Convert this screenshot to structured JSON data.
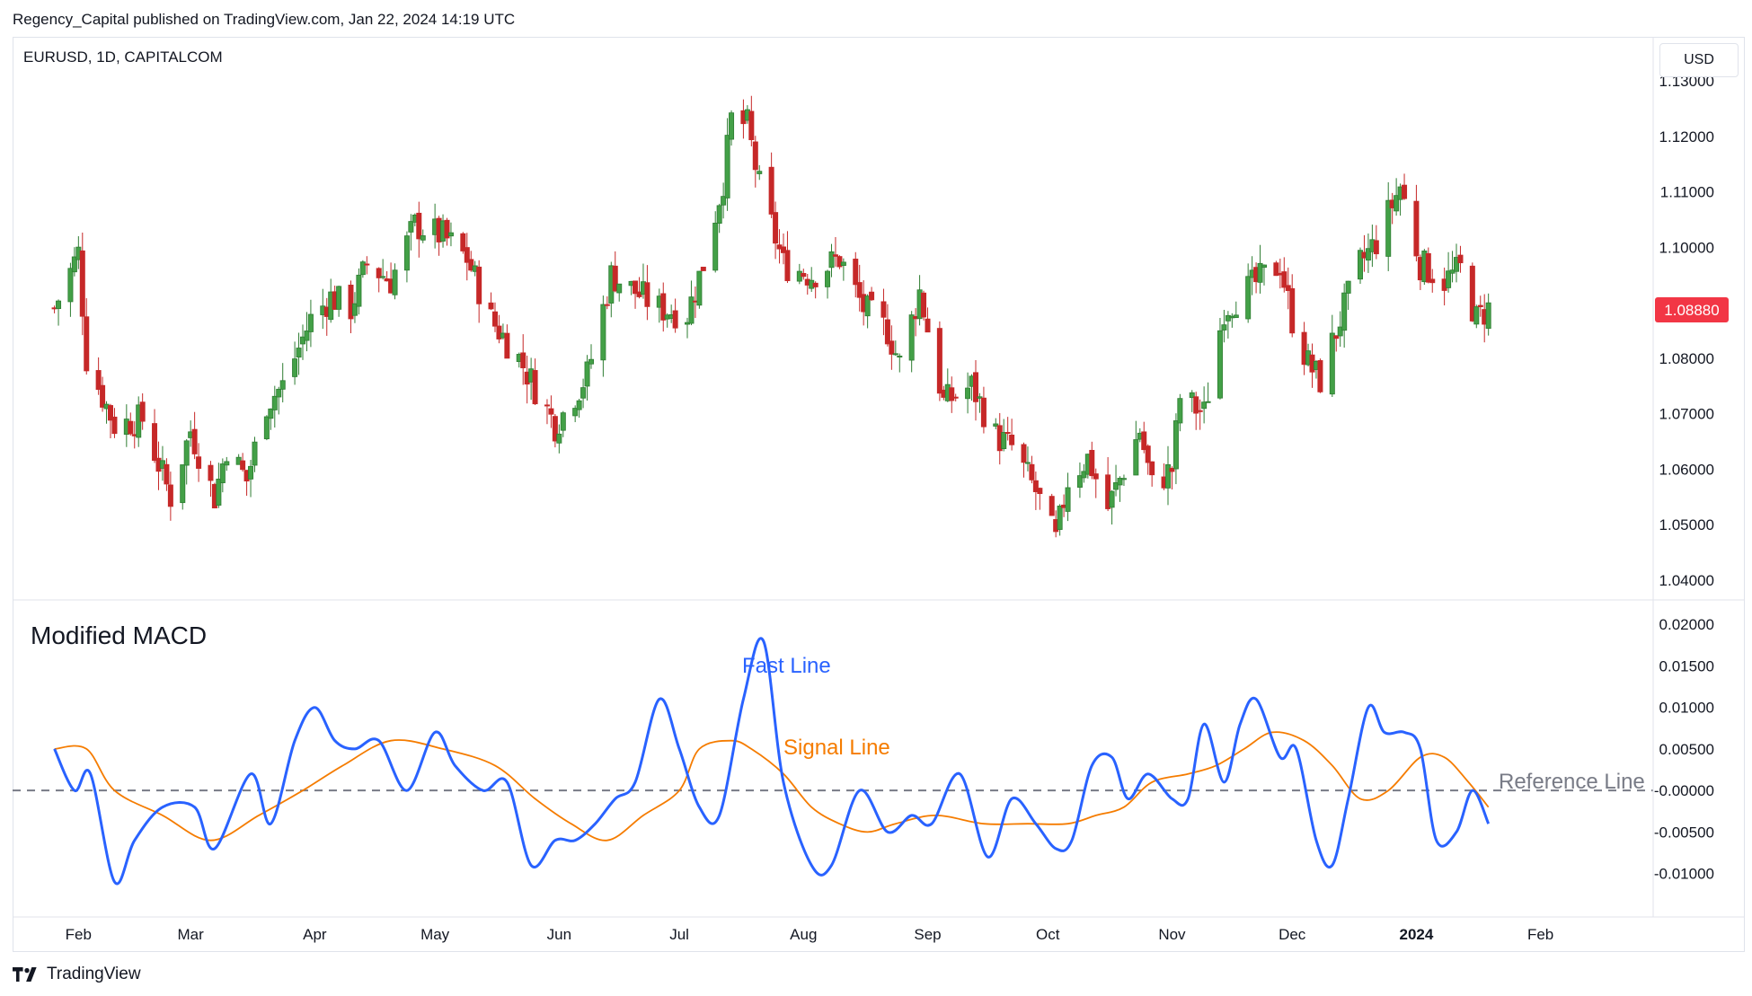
{
  "header": "Regency_Capital published on TradingView.com, Jan 22, 2024 14:19 UTC",
  "symbol": "EURUSD, 1D, CAPITALCOM",
  "currency": "USD",
  "footer_brand": "TradingView",
  "colors": {
    "up": "#26a69a",
    "up_body": "#2e7d32",
    "down": "#c62828",
    "fast": "#2962ff",
    "signal": "#f57c00",
    "ref": "#787b86",
    "price_badge": "#f23645"
  },
  "chart_data": [
    {
      "type": "candlestick",
      "title": "EURUSD, 1D, CAPITALCOM",
      "ylim": [
        1.04,
        1.13
      ],
      "y_ticks": [
        "1.04000",
        "1.05000",
        "1.06000",
        "1.07000",
        "1.08000",
        "1.09000",
        "1.10000",
        "1.11000",
        "1.12000",
        "1.13000"
      ],
      "x_ticks": [
        "Feb",
        "Mar",
        "Apr",
        "May",
        "Jun",
        "Jul",
        "Aug",
        "Sep",
        "Oct",
        "Nov",
        "Dec",
        "2024",
        "Feb"
      ],
      "last_price": "1.08880",
      "grid": false,
      "close_path": [
        [
          "2023-01-26",
          1.089
        ],
        [
          "2023-02-01",
          1.099
        ],
        [
          "2023-02-03",
          1.08
        ],
        [
          "2023-02-10",
          1.068
        ],
        [
          "2023-02-17",
          1.069
        ],
        [
          "2023-02-24",
          1.055
        ],
        [
          "2023-03-01",
          1.067
        ],
        [
          "2023-03-07",
          1.055
        ],
        [
          "2023-03-10",
          1.064
        ],
        [
          "2023-03-15",
          1.058
        ],
        [
          "2023-03-20",
          1.072
        ],
        [
          "2023-03-24",
          1.075
        ],
        [
          "2023-03-31",
          1.087
        ],
        [
          "2023-04-05",
          1.091
        ],
        [
          "2023-04-10",
          1.089
        ],
        [
          "2023-04-14",
          1.097
        ],
        [
          "2023-04-20",
          1.094
        ],
        [
          "2023-04-26",
          1.104
        ],
        [
          "2023-05-03",
          1.102
        ],
        [
          "2023-05-09",
          1.098
        ],
        [
          "2023-05-15",
          1.087
        ],
        [
          "2023-05-22",
          1.08
        ],
        [
          "2023-05-31",
          1.068
        ],
        [
          "2023-06-02",
          1.07
        ],
        [
          "2023-06-08",
          1.077
        ],
        [
          "2023-06-14",
          1.095
        ],
        [
          "2023-06-20",
          1.092
        ],
        [
          "2023-06-26",
          1.089
        ],
        [
          "2023-07-03",
          1.088
        ],
        [
          "2023-07-07",
          1.097
        ],
        [
          "2023-07-12",
          1.112
        ],
        [
          "2023-07-14",
          1.123
        ],
        [
          "2023-07-18",
          1.122
        ],
        [
          "2023-07-21",
          1.111
        ],
        [
          "2023-07-27",
          1.097
        ],
        [
          "2023-08-03",
          1.095
        ],
        [
          "2023-08-10",
          1.098
        ],
        [
          "2023-08-16",
          1.089
        ],
        [
          "2023-08-22",
          1.085
        ],
        [
          "2023-08-25",
          1.079
        ],
        [
          "2023-08-30",
          1.092
        ],
        [
          "2023-09-05",
          1.072
        ],
        [
          "2023-09-12",
          1.075
        ],
        [
          "2023-09-18",
          1.066
        ],
        [
          "2023-09-22",
          1.064
        ],
        [
          "2023-09-28",
          1.056
        ],
        [
          "2023-10-03",
          1.047
        ],
        [
          "2023-10-06",
          1.058
        ],
        [
          "2023-10-11",
          1.062
        ],
        [
          "2023-10-16",
          1.053
        ],
        [
          "2023-10-20",
          1.06
        ],
        [
          "2023-10-24",
          1.067
        ],
        [
          "2023-10-27",
          1.057
        ],
        [
          "2023-11-01",
          1.06
        ],
        [
          "2023-11-03",
          1.073
        ],
        [
          "2023-11-09",
          1.07
        ],
        [
          "2023-11-14",
          1.089
        ],
        [
          "2023-11-21",
          1.093
        ],
        [
          "2023-11-28",
          1.097
        ],
        [
          "2023-12-01",
          1.087
        ],
        [
          "2023-12-05",
          1.079
        ],
        [
          "2023-12-08",
          1.076
        ],
        [
          "2023-12-13",
          1.087
        ],
        [
          "2023-12-18",
          1.097
        ],
        [
          "2023-12-22",
          1.101
        ],
        [
          "2023-12-28",
          1.111
        ],
        [
          "2024-01-02",
          1.097
        ],
        [
          "2024-01-08",
          1.094
        ],
        [
          "2024-01-12",
          1.096
        ],
        [
          "2024-01-16",
          1.087
        ],
        [
          "2024-01-19",
          1.089
        ]
      ]
    },
    {
      "type": "line",
      "title": "Modified MACD",
      "ylim": [
        -0.0135,
        0.021
      ],
      "y_ticks": [
        "-0.01000",
        "-0.00500",
        "-0.00000",
        "0.00500",
        "0.01000",
        "0.01500",
        "0.02000"
      ],
      "grid": false,
      "reference_value": 0,
      "series": [
        {
          "name": "Fast Line",
          "points": [
            [
              "2023-01-26",
              0.005
            ],
            [
              "2023-01-31",
              0.0
            ],
            [
              "2023-02-04",
              0.002
            ],
            [
              "2023-02-10",
              -0.011
            ],
            [
              "2023-02-15",
              -0.006
            ],
            [
              "2023-02-22",
              -0.002
            ],
            [
              "2023-03-02",
              -0.002
            ],
            [
              "2023-03-07",
              -0.007
            ],
            [
              "2023-03-16",
              0.002
            ],
            [
              "2023-03-21",
              -0.004
            ],
            [
              "2023-03-27",
              0.006
            ],
            [
              "2023-04-01",
              0.01
            ],
            [
              "2023-04-06",
              0.006
            ],
            [
              "2023-04-11",
              0.005
            ],
            [
              "2023-04-17",
              0.006
            ],
            [
              "2023-04-24",
              0.0
            ],
            [
              "2023-05-01",
              0.007
            ],
            [
              "2023-05-06",
              0.003
            ],
            [
              "2023-05-13",
              0.0
            ],
            [
              "2023-05-19",
              0.001
            ],
            [
              "2023-05-25",
              -0.009
            ],
            [
              "2023-05-31",
              -0.006
            ],
            [
              "2023-06-05",
              -0.006
            ],
            [
              "2023-06-10",
              -0.004
            ],
            [
              "2023-06-15",
              -0.001
            ],
            [
              "2023-06-20",
              0.001
            ],
            [
              "2023-06-26",
              0.011
            ],
            [
              "2023-07-01",
              0.005
            ],
            [
              "2023-07-06",
              -0.002
            ],
            [
              "2023-07-11",
              -0.003
            ],
            [
              "2023-07-17",
              0.011
            ],
            [
              "2023-07-22",
              0.018
            ],
            [
              "2023-07-27",
              0.001
            ],
            [
              "2023-08-03",
              -0.009
            ],
            [
              "2023-08-08",
              -0.009
            ],
            [
              "2023-08-15",
              0.0
            ],
            [
              "2023-08-22",
              -0.005
            ],
            [
              "2023-08-28",
              -0.003
            ],
            [
              "2023-09-02",
              -0.004
            ],
            [
              "2023-09-09",
              0.002
            ],
            [
              "2023-09-16",
              -0.008
            ],
            [
              "2023-09-22",
              -0.001
            ],
            [
              "2023-09-28",
              -0.004
            ],
            [
              "2023-10-03",
              -0.007
            ],
            [
              "2023-10-07",
              -0.006
            ],
            [
              "2023-10-12",
              0.003
            ],
            [
              "2023-10-17",
              0.004
            ],
            [
              "2023-10-21",
              -0.001
            ],
            [
              "2023-10-26",
              0.002
            ],
            [
              "2023-11-01",
              -0.001
            ],
            [
              "2023-11-05",
              -0.001
            ],
            [
              "2023-11-09",
              0.008
            ],
            [
              "2023-11-14",
              0.001
            ],
            [
              "2023-11-18",
              0.008
            ],
            [
              "2023-11-22",
              0.011
            ],
            [
              "2023-11-28",
              0.004
            ],
            [
              "2023-12-02",
              0.005
            ],
            [
              "2023-12-07",
              -0.006
            ],
            [
              "2023-12-11",
              -0.009
            ],
            [
              "2023-12-15",
              -0.001
            ],
            [
              "2023-12-20",
              0.01
            ],
            [
              "2023-12-24",
              0.007
            ],
            [
              "2023-12-29",
              0.007
            ],
            [
              "2024-01-02",
              0.005
            ],
            [
              "2024-01-06",
              -0.006
            ],
            [
              "2024-01-11",
              -0.005
            ],
            [
              "2024-01-15",
              0.0
            ],
            [
              "2024-01-19",
              -0.004
            ]
          ]
        },
        {
          "name": "Signal Line",
          "points": [
            [
              "2023-01-26",
              0.005
            ],
            [
              "2023-02-03",
              0.005
            ],
            [
              "2023-02-10",
              0.0
            ],
            [
              "2023-02-22",
              -0.003
            ],
            [
              "2023-03-06",
              -0.006
            ],
            [
              "2023-03-18",
              -0.003
            ],
            [
              "2023-03-29",
              0.0
            ],
            [
              "2023-04-08",
              0.003
            ],
            [
              "2023-04-20",
              0.006
            ],
            [
              "2023-05-03",
              0.005
            ],
            [
              "2023-05-16",
              0.003
            ],
            [
              "2023-05-26",
              -0.001
            ],
            [
              "2023-06-04",
              -0.004
            ],
            [
              "2023-06-13",
              -0.006
            ],
            [
              "2023-06-22",
              -0.003
            ],
            [
              "2023-07-01",
              0.0
            ],
            [
              "2023-07-06",
              0.005
            ],
            [
              "2023-07-14",
              0.006
            ],
            [
              "2023-07-19",
              0.005
            ],
            [
              "2023-07-27",
              0.002
            ],
            [
              "2023-08-03",
              -0.002
            ],
            [
              "2023-08-10",
              -0.004
            ],
            [
              "2023-08-17",
              -0.005
            ],
            [
              "2023-08-24",
              -0.004
            ],
            [
              "2023-09-03",
              -0.003
            ],
            [
              "2023-09-15",
              -0.004
            ],
            [
              "2023-09-26",
              -0.004
            ],
            [
              "2023-10-06",
              -0.004
            ],
            [
              "2023-10-13",
              -0.003
            ],
            [
              "2023-10-20",
              -0.002
            ],
            [
              "2023-10-27",
              0.001
            ],
            [
              "2023-11-05",
              0.002
            ],
            [
              "2023-11-12",
              0.003
            ],
            [
              "2023-11-19",
              0.005
            ],
            [
              "2023-11-26",
              0.007
            ],
            [
              "2023-12-04",
              0.006
            ],
            [
              "2023-12-11",
              0.003
            ],
            [
              "2023-12-18",
              -0.001
            ],
            [
              "2023-12-25",
              0.0
            ],
            [
              "2024-01-02",
              0.004
            ],
            [
              "2024-01-08",
              0.004
            ],
            [
              "2024-01-14",
              0.001
            ],
            [
              "2024-01-19",
              -0.002
            ]
          ]
        }
      ],
      "annotations": [
        "Fast Line",
        "Signal Line",
        "Reference Line"
      ]
    }
  ]
}
